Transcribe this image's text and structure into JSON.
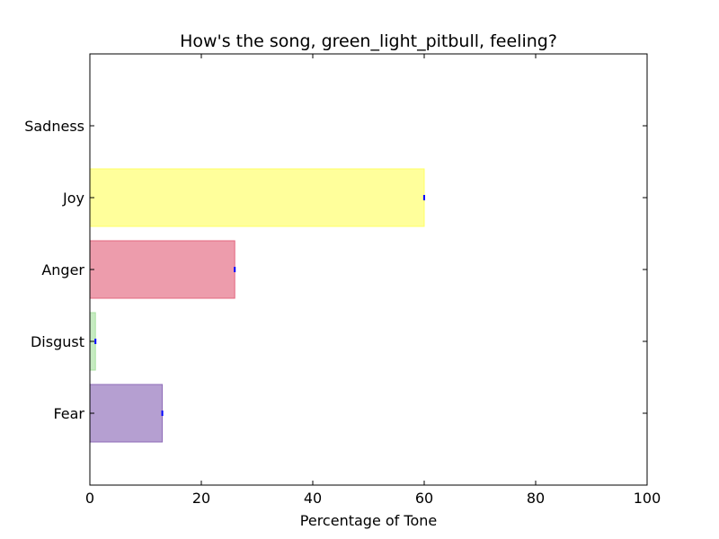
{
  "chart_data": {
    "type": "bar",
    "orientation": "horizontal",
    "title": "How's the song, green_light_pitbull, feeling?",
    "xlabel": "Percentage of Tone",
    "ylabel": "",
    "xlim": [
      0,
      100
    ],
    "xticks": [
      "0",
      "20",
      "40",
      "60",
      "80",
      "100"
    ],
    "categories": [
      "Fear",
      "Disgust",
      "Anger",
      "Joy",
      "Sadness"
    ],
    "values": [
      13,
      1,
      26,
      60,
      0
    ],
    "colors": [
      "#8e6bb8",
      "#a8e0a0",
      "#e4677f",
      "#ffff66",
      "#5599dd"
    ],
    "error_marker_color": "#0000ff",
    "grid": false,
    "legend": "none"
  }
}
